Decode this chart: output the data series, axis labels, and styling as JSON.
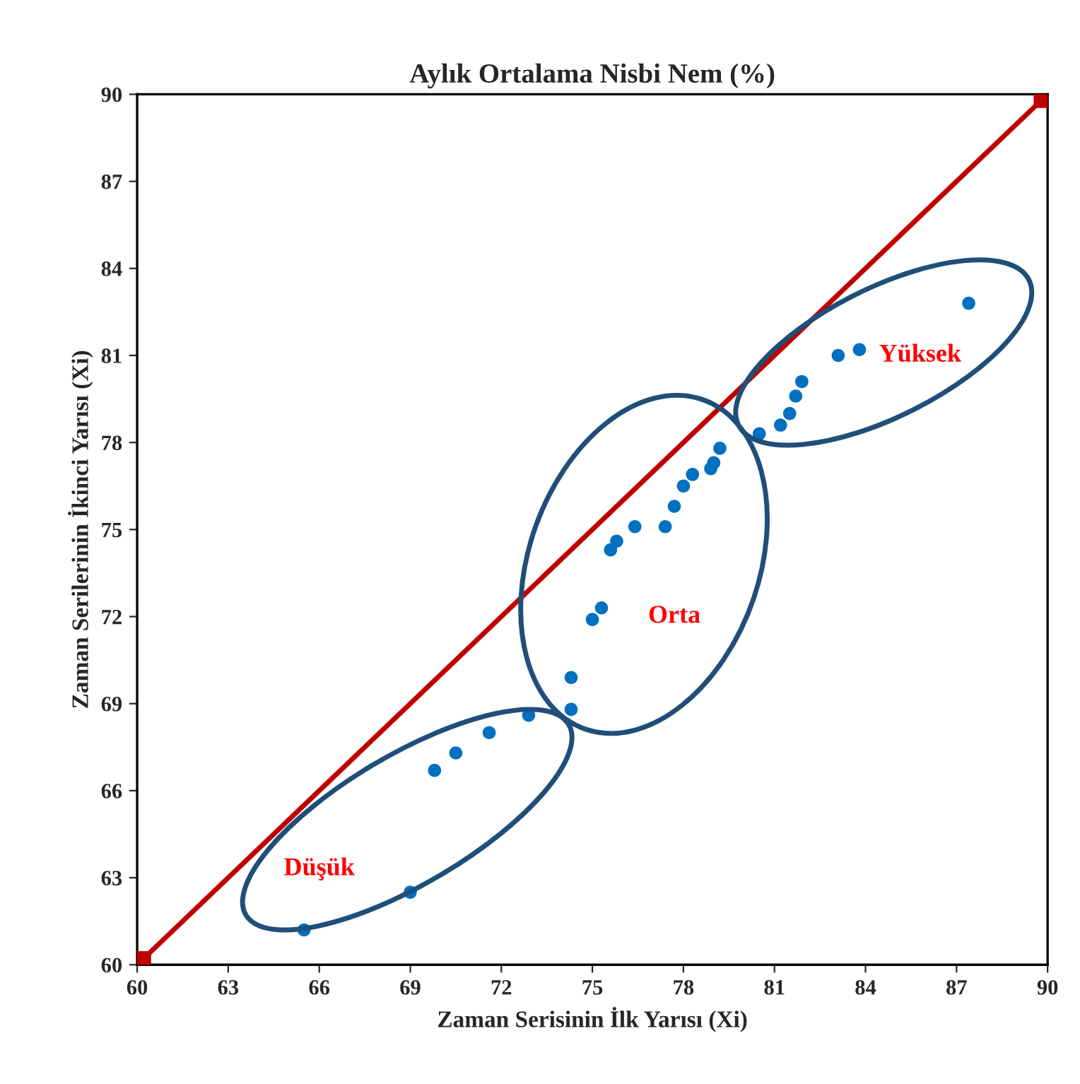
{
  "chart_data": {
    "type": "scatter",
    "title": "Aylık Ortalama Nisbi Nem (%)",
    "xlabel": "Zaman Serisinin İlk Yarısı (Xi)",
    "ylabel": "Zaman Serilerinin İkinci Yarısı (Xi)",
    "series": [
      {
        "color": "#0070c0",
        "marker": "circle",
        "x": [
          65.5,
          69.0,
          69.8,
          70.5,
          71.6,
          72.9,
          74.3,
          74.3,
          75.0,
          75.3,
          75.6,
          75.8,
          76.4,
          77.4,
          77.7,
          78.0,
          78.3,
          78.9,
          79.0,
          79.2,
          80.5,
          81.2,
          81.5,
          81.7,
          81.9,
          83.1,
          83.8,
          87.4
        ],
        "values": [
          61.2,
          62.5,
          66.7,
          67.3,
          68.0,
          68.6,
          68.8,
          69.9,
          71.9,
          72.3,
          74.3,
          74.6,
          75.1,
          75.1,
          75.8,
          76.5,
          76.9,
          77.1,
          77.3,
          77.8,
          78.3,
          78.6,
          79.0,
          79.6,
          80.1,
          81.0,
          81.2,
          82.8
        ]
      },
      {
        "type": "line",
        "color": "#c00000",
        "marker": "square",
        "x": [
          60.2,
          89.8
        ],
        "values": [
          60.2,
          89.8
        ]
      }
    ],
    "annotations": [
      "Düşük",
      "Orta",
      "Yüksek"
    ],
    "xlim": [
      60,
      90
    ],
    "ylim": [
      60,
      90
    ],
    "xticks": [
      60,
      63,
      66,
      69,
      72,
      75,
      78,
      81,
      84,
      87,
      90
    ],
    "yticks": [
      60,
      63,
      66,
      69,
      72,
      75,
      78,
      81,
      84,
      87,
      90
    ],
    "grid": false,
    "legend": false
  }
}
